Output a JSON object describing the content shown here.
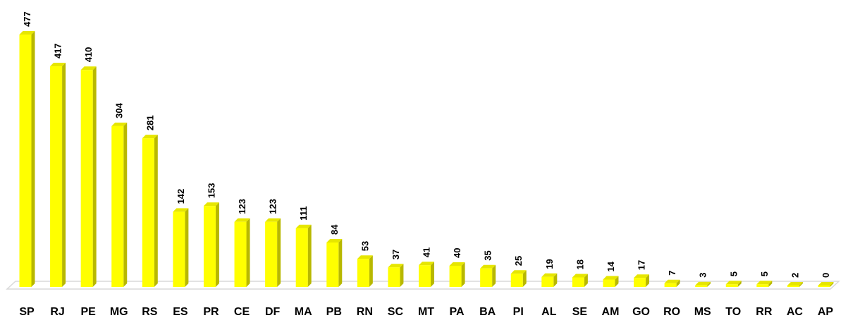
{
  "chart_data": {
    "type": "bar",
    "title": "",
    "xlabel": "",
    "ylabel": "",
    "ylim": [
      0,
      477
    ],
    "grid": false,
    "legend": "none",
    "bar_color": "#FFFF00",
    "bar_side_color": "#B8B800",
    "bar_top_color": "#E6E600",
    "floor_color": "#D9D9D9",
    "categories": [
      "SP",
      "RJ",
      "PE",
      "MG",
      "RS",
      "ES",
      "PR",
      "CE",
      "DF",
      "MA",
      "PB",
      "RN",
      "SC",
      "MT",
      "PA",
      "BA",
      "PI",
      "AL",
      "SE",
      "AM",
      "GO",
      "RO",
      "MS",
      "TO",
      "RR",
      "AC",
      "AP"
    ],
    "values": [
      477,
      417,
      410,
      304,
      281,
      142,
      153,
      123,
      123,
      111,
      84,
      53,
      37,
      41,
      40,
      35,
      25,
      19,
      18,
      14,
      17,
      7,
      3,
      5,
      5,
      2,
      0
    ]
  }
}
